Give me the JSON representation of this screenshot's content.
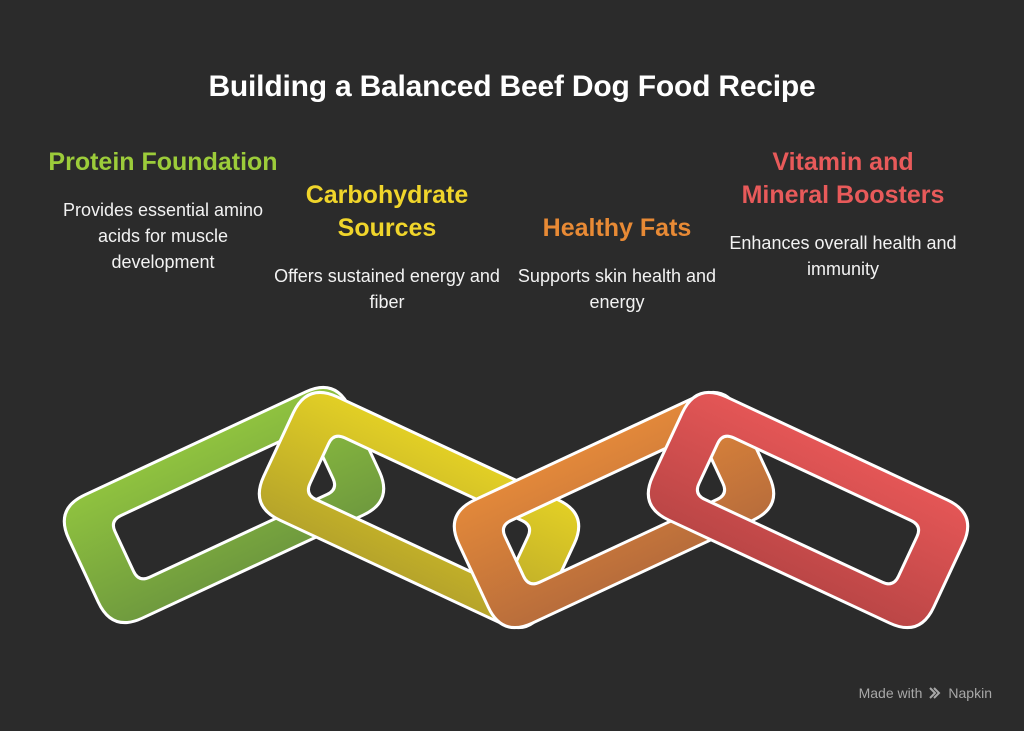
{
  "title": "Building a Balanced Beef Dog Food Recipe",
  "items": [
    {
      "heading": "Protein Foundation",
      "description": "Provides essential amino acids for muscle development",
      "color": "#9ccc3a"
    },
    {
      "heading": "Carbohydrate Sources",
      "description": "Offers sustained energy and fiber",
      "color": "#f0d52b"
    },
    {
      "heading": "Healthy Fats",
      "description": "Supports skin health and energy",
      "color": "#e88a35"
    },
    {
      "heading": "Vitamin and Mineral Boosters",
      "description": "Enhances overall health and immunity",
      "color": "#e85a5a"
    }
  ],
  "footer": {
    "made_with": "Made with",
    "brand": "Napkin",
    "icon": "napkin-logo-icon"
  }
}
